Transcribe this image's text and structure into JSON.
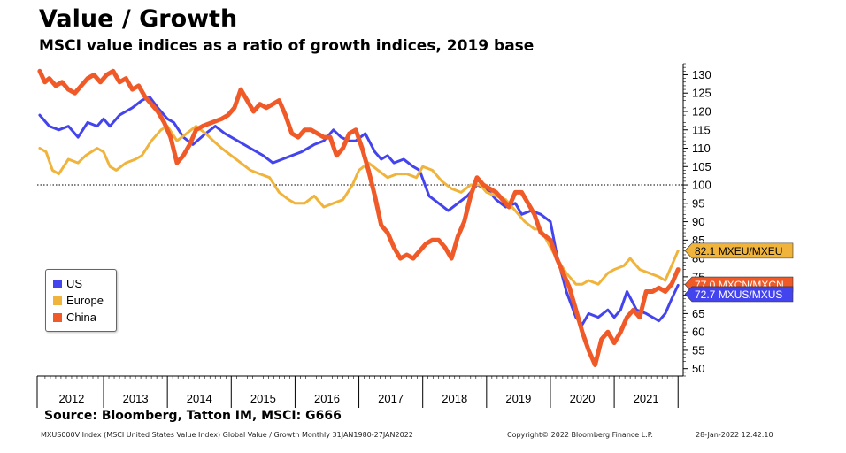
{
  "header": {
    "title": "Value / Growth",
    "subtitle": "MSCI value indices as a ratio of growth indices, 2019 base"
  },
  "source": "Source: Bloomberg, Tatton IM, MSCI: G666",
  "footer": {
    "left": "MXUS000V Index (MSCI United States Value Index) Global  Value / Growth  Monthly 31JAN1980-27JAN2022",
    "copyright": "Copyright© 2022 Bloomberg Finance L.P.",
    "timestamp": "28-Jan-2022 12:42:10"
  },
  "chart_data": {
    "type": "line",
    "years": [
      "2012",
      "2013",
      "2014",
      "2015",
      "2016",
      "2017",
      "2018",
      "2019",
      "2020",
      "2021"
    ],
    "x_range": [
      2011.96,
      2022.08
    ],
    "ylim": [
      48,
      133
    ],
    "y_ticks": [
      50,
      55,
      60,
      65,
      70,
      75,
      80,
      85,
      90,
      95,
      100,
      105,
      110,
      115,
      120,
      125,
      130
    ],
    "reference_line": 100,
    "legend_placement": "left",
    "series": [
      {
        "name": "US",
        "color": "#4444ee",
        "label": "72.7 MXUS/MXUS",
        "last": 72.7,
        "points": [
          [
            2012.0,
            119
          ],
          [
            2012.15,
            116
          ],
          [
            2012.3,
            115
          ],
          [
            2012.45,
            116
          ],
          [
            2012.6,
            113
          ],
          [
            2012.75,
            117
          ],
          [
            2012.9,
            116
          ],
          [
            2013.0,
            118
          ],
          [
            2013.1,
            116
          ],
          [
            2013.25,
            119
          ],
          [
            2013.45,
            121
          ],
          [
            2013.6,
            123
          ],
          [
            2013.72,
            124
          ],
          [
            2013.85,
            121
          ],
          [
            2014.0,
            118
          ],
          [
            2014.1,
            117
          ],
          [
            2014.25,
            113
          ],
          [
            2014.4,
            111
          ],
          [
            2014.6,
            114
          ],
          [
            2014.75,
            116
          ],
          [
            2014.9,
            114
          ],
          [
            2015.0,
            113
          ],
          [
            2015.1,
            112
          ],
          [
            2015.3,
            110
          ],
          [
            2015.5,
            108
          ],
          [
            2015.65,
            106
          ],
          [
            2015.8,
            107
          ],
          [
            2015.95,
            108
          ],
          [
            2016.1,
            109
          ],
          [
            2016.3,
            111
          ],
          [
            2016.45,
            112
          ],
          [
            2016.6,
            115
          ],
          [
            2016.72,
            113
          ],
          [
            2016.85,
            112
          ],
          [
            2016.95,
            112
          ],
          [
            2017.1,
            114
          ],
          [
            2017.25,
            109
          ],
          [
            2017.35,
            107
          ],
          [
            2017.45,
            108
          ],
          [
            2017.55,
            106
          ],
          [
            2017.7,
            107
          ],
          [
            2017.85,
            105
          ],
          [
            2017.95,
            104
          ],
          [
            2018.1,
            97
          ],
          [
            2018.25,
            95
          ],
          [
            2018.4,
            93
          ],
          [
            2018.55,
            95
          ],
          [
            2018.7,
            97
          ],
          [
            2018.85,
            100
          ],
          [
            2019.0,
            99
          ],
          [
            2019.15,
            96
          ],
          [
            2019.3,
            94
          ],
          [
            2019.45,
            95
          ],
          [
            2019.55,
            92
          ],
          [
            2019.7,
            93
          ],
          [
            2019.85,
            92
          ],
          [
            2020.0,
            90
          ],
          [
            2020.1,
            81
          ],
          [
            2020.25,
            71
          ],
          [
            2020.4,
            64
          ],
          [
            2020.5,
            62
          ],
          [
            2020.6,
            65
          ],
          [
            2020.75,
            64
          ],
          [
            2020.9,
            66
          ],
          [
            2021.0,
            64
          ],
          [
            2021.1,
            66
          ],
          [
            2021.2,
            71
          ],
          [
            2021.35,
            66
          ],
          [
            2021.5,
            65
          ],
          [
            2021.6,
            64
          ],
          [
            2021.7,
            63
          ],
          [
            2021.8,
            65
          ],
          [
            2021.9,
            69
          ],
          [
            2022.0,
            72.7
          ]
        ]
      },
      {
        "name": "Europe",
        "color": "#f0b43c",
        "label": "82.1 MXEU/MXEU",
        "last": 82.1,
        "points": [
          [
            2012.0,
            110
          ],
          [
            2012.1,
            109
          ],
          [
            2012.2,
            104
          ],
          [
            2012.3,
            103
          ],
          [
            2012.45,
            107
          ],
          [
            2012.6,
            106
          ],
          [
            2012.72,
            108
          ],
          [
            2012.9,
            110
          ],
          [
            2013.0,
            109
          ],
          [
            2013.1,
            105
          ],
          [
            2013.2,
            104
          ],
          [
            2013.35,
            106
          ],
          [
            2013.5,
            107
          ],
          [
            2013.6,
            108
          ],
          [
            2013.75,
            112
          ],
          [
            2013.9,
            115
          ],
          [
            2014.0,
            116
          ],
          [
            2014.15,
            112
          ],
          [
            2014.3,
            114
          ],
          [
            2014.45,
            116
          ],
          [
            2014.6,
            114
          ],
          [
            2014.72,
            112
          ],
          [
            2014.85,
            110
          ],
          [
            2015.0,
            108
          ],
          [
            2015.15,
            106
          ],
          [
            2015.3,
            104
          ],
          [
            2015.45,
            103
          ],
          [
            2015.6,
            102
          ],
          [
            2015.75,
            98
          ],
          [
            2015.9,
            96
          ],
          [
            2016.0,
            95
          ],
          [
            2016.15,
            95
          ],
          [
            2016.3,
            97
          ],
          [
            2016.45,
            94
          ],
          [
            2016.6,
            95
          ],
          [
            2016.75,
            96
          ],
          [
            2016.9,
            100
          ],
          [
            2017.0,
            104
          ],
          [
            2017.15,
            106
          ],
          [
            2017.3,
            104
          ],
          [
            2017.45,
            102
          ],
          [
            2017.6,
            103
          ],
          [
            2017.75,
            103
          ],
          [
            2017.9,
            102
          ],
          [
            2018.0,
            105
          ],
          [
            2018.15,
            104
          ],
          [
            2018.3,
            101
          ],
          [
            2018.45,
            99
          ],
          [
            2018.6,
            98
          ],
          [
            2018.75,
            100
          ],
          [
            2018.9,
            100
          ],
          [
            2019.0,
            98
          ],
          [
            2019.15,
            97
          ],
          [
            2019.3,
            96
          ],
          [
            2019.45,
            93
          ],
          [
            2019.6,
            90
          ],
          [
            2019.75,
            88
          ],
          [
            2019.85,
            88
          ],
          [
            2020.0,
            83
          ],
          [
            2020.1,
            80
          ],
          [
            2020.25,
            76
          ],
          [
            2020.4,
            73
          ],
          [
            2020.5,
            73
          ],
          [
            2020.6,
            74
          ],
          [
            2020.75,
            73
          ],
          [
            2020.9,
            76
          ],
          [
            2021.0,
            77
          ],
          [
            2021.15,
            78
          ],
          [
            2021.25,
            80
          ],
          [
            2021.4,
            77
          ],
          [
            2021.55,
            76
          ],
          [
            2021.7,
            75
          ],
          [
            2021.8,
            74
          ],
          [
            2021.9,
            78
          ],
          [
            2022.0,
            82.1
          ]
        ]
      },
      {
        "name": "China",
        "color": "#f05a28",
        "label": "77.0 MXCN/MXCN",
        "last": 77.0,
        "points": [
          [
            2012.0,
            131
          ],
          [
            2012.08,
            128
          ],
          [
            2012.15,
            129
          ],
          [
            2012.25,
            127
          ],
          [
            2012.35,
            128
          ],
          [
            2012.45,
            126
          ],
          [
            2012.55,
            125
          ],
          [
            2012.65,
            127
          ],
          [
            2012.75,
            129
          ],
          [
            2012.85,
            130
          ],
          [
            2012.95,
            128
          ],
          [
            2013.05,
            130
          ],
          [
            2013.15,
            131
          ],
          [
            2013.25,
            128
          ],
          [
            2013.35,
            129
          ],
          [
            2013.45,
            126
          ],
          [
            2013.55,
            127
          ],
          [
            2013.65,
            124
          ],
          [
            2013.75,
            122
          ],
          [
            2013.85,
            120
          ],
          [
            2013.95,
            117
          ],
          [
            2014.05,
            113
          ],
          [
            2014.15,
            106
          ],
          [
            2014.25,
            108
          ],
          [
            2014.35,
            111
          ],
          [
            2014.45,
            115
          ],
          [
            2014.55,
            116
          ],
          [
            2014.7,
            117
          ],
          [
            2014.85,
            118
          ],
          [
            2014.95,
            119
          ],
          [
            2015.05,
            121
          ],
          [
            2015.15,
            126
          ],
          [
            2015.25,
            123
          ],
          [
            2015.35,
            120
          ],
          [
            2015.45,
            122
          ],
          [
            2015.55,
            121
          ],
          [
            2015.65,
            122
          ],
          [
            2015.75,
            123
          ],
          [
            2015.85,
            119
          ],
          [
            2015.95,
            114
          ],
          [
            2016.05,
            113
          ],
          [
            2016.15,
            115
          ],
          [
            2016.25,
            115
          ],
          [
            2016.35,
            114
          ],
          [
            2016.45,
            113
          ],
          [
            2016.55,
            113
          ],
          [
            2016.65,
            108
          ],
          [
            2016.75,
            110
          ],
          [
            2016.85,
            114
          ],
          [
            2016.95,
            115
          ],
          [
            2017.05,
            110
          ],
          [
            2017.15,
            104
          ],
          [
            2017.25,
            97
          ],
          [
            2017.35,
            89
          ],
          [
            2017.45,
            87
          ],
          [
            2017.55,
            83
          ],
          [
            2017.65,
            80
          ],
          [
            2017.75,
            81
          ],
          [
            2017.85,
            80
          ],
          [
            2017.95,
            82
          ],
          [
            2018.05,
            84
          ],
          [
            2018.15,
            85
          ],
          [
            2018.25,
            85
          ],
          [
            2018.35,
            83
          ],
          [
            2018.45,
            80
          ],
          [
            2018.55,
            86
          ],
          [
            2018.65,
            90
          ],
          [
            2018.75,
            97
          ],
          [
            2018.85,
            102
          ],
          [
            2018.95,
            100
          ],
          [
            2019.05,
            99
          ],
          [
            2019.15,
            98
          ],
          [
            2019.25,
            96
          ],
          [
            2019.35,
            94
          ],
          [
            2019.45,
            98
          ],
          [
            2019.55,
            98
          ],
          [
            2019.65,
            95
          ],
          [
            2019.75,
            92
          ],
          [
            2019.85,
            87
          ],
          [
            2020.0,
            85
          ],
          [
            2020.1,
            80
          ],
          [
            2020.2,
            76
          ],
          [
            2020.3,
            72
          ],
          [
            2020.4,
            66
          ],
          [
            2020.5,
            60
          ],
          [
            2020.6,
            55
          ],
          [
            2020.7,
            51
          ],
          [
            2020.8,
            58
          ],
          [
            2020.9,
            60
          ],
          [
            2021.0,
            57
          ],
          [
            2021.1,
            60
          ],
          [
            2021.2,
            64
          ],
          [
            2021.3,
            66
          ],
          [
            2021.4,
            64
          ],
          [
            2021.5,
            71
          ],
          [
            2021.6,
            71
          ],
          [
            2021.7,
            72
          ],
          [
            2021.8,
            71
          ],
          [
            2021.9,
            73
          ],
          [
            2022.0,
            77.0
          ]
        ]
      }
    ]
  }
}
